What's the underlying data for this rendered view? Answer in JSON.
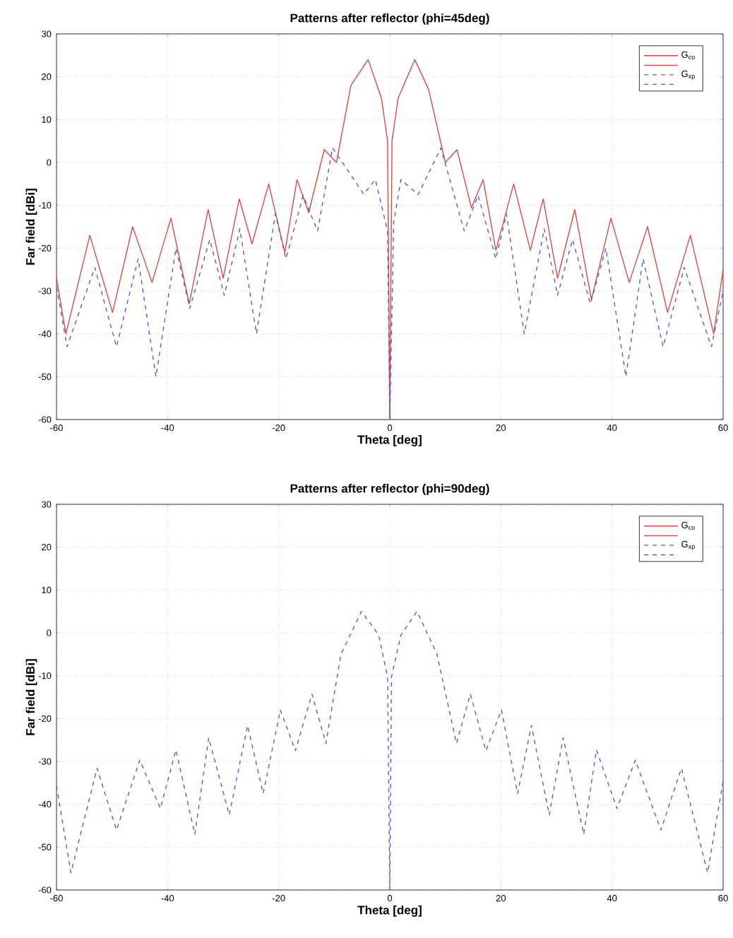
{
  "chart_data": [
    {
      "type": "line",
      "title": "Patterns after reflector (phi=45deg)",
      "xlabel": "Theta [deg]",
      "ylabel": "Far field [dBi]",
      "xlim": [
        -60,
        60
      ],
      "ylim": [
        -60,
        30
      ],
      "xticks": [
        -60,
        -40,
        -20,
        0,
        20,
        40,
        60
      ],
      "yticks": [
        -60,
        -50,
        -40,
        -30,
        -20,
        -10,
        0,
        10,
        20,
        30
      ],
      "grid": true,
      "legend": "top right",
      "series": [
        {
          "name": "G$_{co}$",
          "color": "#e04848",
          "line_style": "solid",
          "x": [
            -60,
            -58.3,
            -54,
            -49.9,
            -46.3,
            -42.8,
            -39.4,
            -36.1,
            -32.7,
            -30,
            -27.1,
            -24.8,
            -21.8,
            -18.9,
            -16.7,
            -14.6,
            -11.8,
            -9.6,
            -7,
            -3.9,
            -1.5,
            -0.4,
            0
          ],
          "values": [
            -27,
            -40,
            -17,
            -35,
            -15,
            -28,
            -13,
            -33,
            -11,
            -27,
            -8.5,
            -19,
            -5,
            -21,
            -4,
            -11.7,
            3,
            0,
            18,
            24,
            15,
            5,
            -60
          ]
        },
        {
          "color": "#e04848",
          "line_style": "solid",
          "x": [
            0,
            0.4,
            1.5,
            4.5,
            7,
            10,
            12.1,
            14.7,
            16.8,
            19.1,
            22.3,
            25.3,
            27.6,
            30.2,
            33.3,
            36.3,
            39.8,
            43.1,
            46.4,
            50,
            54.1,
            58.3,
            60
          ],
          "values": [
            -60,
            5,
            15,
            24,
            17,
            0,
            3,
            -10.6,
            -4,
            -20.5,
            -5,
            -20.5,
            -8.5,
            -27,
            -11,
            -32,
            -13,
            -28,
            -15,
            -35,
            -17,
            -40,
            -25
          ]
        },
        {
          "name": "G$_{xp}$",
          "color": "#5a5ad8",
          "line_style": "dashed",
          "x": [
            -60,
            -58.1,
            -53.1,
            -49.2,
            -45.3,
            -42.1,
            -38.5,
            -36,
            -32.4,
            -29.8,
            -27,
            -24,
            -20.6,
            -18.7,
            -15.6,
            -13,
            -10.3,
            -4.7,
            -2.6,
            -0.4,
            0
          ],
          "values": [
            -29,
            -43,
            -24.5,
            -43,
            -22.5,
            -50,
            -20,
            -34,
            -18,
            -31,
            -15.5,
            -40,
            -12,
            -22.5,
            -7.7,
            -16,
            3.4,
            -7.4,
            -4,
            -16,
            -60
          ]
        },
        {
          "color": "#5a5ad8",
          "line_style": "dashed",
          "x": [
            0,
            0.7,
            2,
            5.1,
            9.2,
            13.4,
            15.9,
            19.1,
            21,
            24.2,
            27.8,
            30.2,
            32.9,
            36.1,
            38.9,
            42.5,
            45.6,
            49.2,
            53,
            57.9,
            60
          ],
          "values": [
            -60,
            -14,
            -4,
            -7.5,
            3.4,
            -16,
            -7.7,
            -22.5,
            -12,
            -40,
            -15.5,
            -31,
            -18,
            -33,
            -20,
            -50,
            -22.5,
            -43,
            -24.5,
            -43,
            -30
          ]
        }
      ]
    },
    {
      "type": "line",
      "title": "Patterns after reflector (phi=90deg)",
      "xlabel": "Theta [deg]",
      "ylabel": "Far field [dBi]",
      "xlim": [
        -60,
        60
      ],
      "ylim": [
        -60,
        30
      ],
      "xticks": [
        -60,
        -40,
        -20,
        0,
        20,
        40,
        60
      ],
      "yticks": [
        -60,
        -50,
        -40,
        -30,
        -20,
        -10,
        0,
        10,
        20,
        30
      ],
      "grid": true,
      "legend": "top right",
      "series": [
        {
          "name": "G$_{co}$",
          "color": "#e04848",
          "line_style": "solid"
        },
        {
          "color": "#e04848",
          "line_style": "solid"
        },
        {
          "name": "G$_{xp}$",
          "color": "#5a5ad8",
          "line_style": "dashed",
          "x": [
            -60,
            -57.4,
            -52.7,
            -49.2,
            -45,
            -41.3,
            -38.5,
            -35.1,
            -32.6,
            -28.9,
            -25.6,
            -22.8,
            -19.7,
            -17,
            -14,
            -11.5,
            -8.8,
            -5.1,
            -2,
            -0.4,
            0
          ],
          "values": [
            -35.7,
            -56,
            -31.6,
            -46,
            -29.7,
            -41,
            -27.3,
            -47,
            -24.5,
            -42.5,
            -21.6,
            -37.5,
            -18,
            -27.5,
            -14.3,
            -25.8,
            -5,
            5,
            -0.5,
            -10.3,
            -60
          ]
        },
        {
          "color": "#5a5ad8",
          "line_style": "dashed",
          "x": [
            0,
            0.3,
            2,
            4.9,
            8.5,
            12,
            14.5,
            17.3,
            20.1,
            23,
            25.5,
            28.7,
            31.2,
            34.9,
            37.2,
            40.9,
            44.2,
            48.8,
            52.5,
            57.2,
            60
          ],
          "values": [
            -60,
            -10.3,
            -0.5,
            5,
            -5,
            -25.8,
            -14.3,
            -27.5,
            -18,
            -37.5,
            -21.6,
            -42.5,
            -24.5,
            -47,
            -27.3,
            -41,
            -29.7,
            -46,
            -31.6,
            -56,
            -34.6
          ]
        }
      ]
    }
  ]
}
